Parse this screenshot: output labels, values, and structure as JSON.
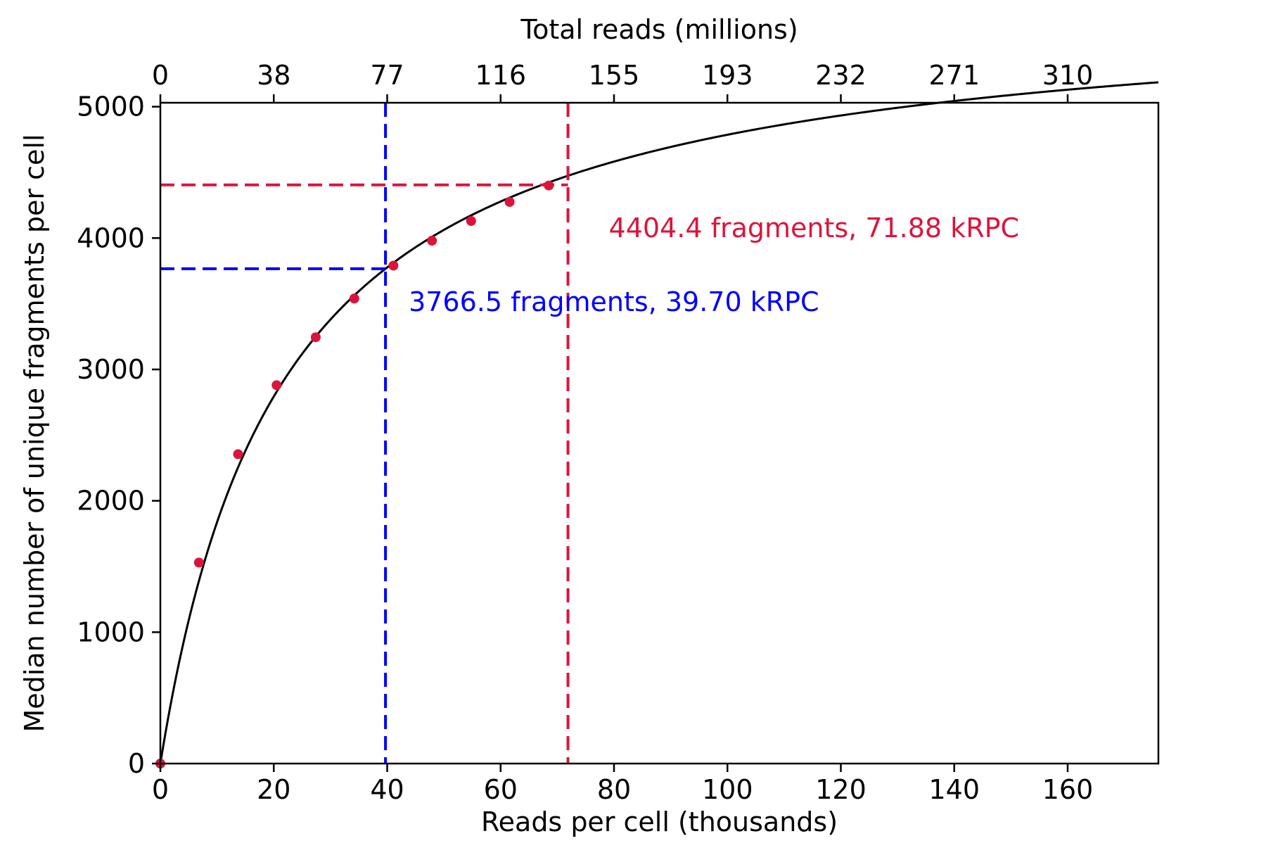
{
  "chart_data": {
    "type": "scatter",
    "title": "",
    "xlabel": "Reads per cell (thousands)",
    "ylabel": "Median number of unique fragments per cell",
    "top_xlabel": "Total reads (millions)",
    "xlim": [
      0,
      176
    ],
    "ylim": [
      0,
      5030
    ],
    "x_ticks": [
      0,
      20,
      40,
      60,
      80,
      100,
      120,
      140,
      160
    ],
    "x_tick_labels": [
      "0",
      "20",
      "40",
      "60",
      "80",
      "100",
      "120",
      "140",
      "160"
    ],
    "y_ticks": [
      0,
      1000,
      2000,
      3000,
      4000,
      5000
    ],
    "y_tick_labels": [
      "0",
      "1000",
      "2000",
      "3000",
      "4000",
      "5000"
    ],
    "top_ticks": [
      0,
      20,
      40,
      60,
      80,
      100,
      120,
      140,
      160
    ],
    "top_tick_labels": [
      "0",
      "38",
      "77",
      "116",
      "155",
      "193",
      "232",
      "271",
      "310"
    ],
    "grid": false,
    "series": [
      {
        "kind": "points",
        "color": "#DC143C",
        "x": [
          0,
          6.8,
          13.7,
          20.5,
          27.4,
          34.2,
          41.1,
          47.9,
          54.8,
          61.6,
          68.5
        ],
        "y": [
          0,
          1530,
          2355,
          2880,
          3245,
          3540,
          3790,
          3980,
          4130,
          4275,
          4400
        ]
      },
      {
        "kind": "fit-curve",
        "color": "#000000",
        "Vmax": 5825,
        "Km": 21.7,
        "x_max": 176
      }
    ],
    "reference_lines": [
      {
        "color": "#0000FF",
        "x": 39.7,
        "y": 3766.5,
        "label": "3766.5 fragments, 39.70 kRPC"
      },
      {
        "color": "#DC143C",
        "x": 71.88,
        "y": 4404.4,
        "label": "4404.4 fragments, 71.88 kRPC"
      }
    ]
  }
}
